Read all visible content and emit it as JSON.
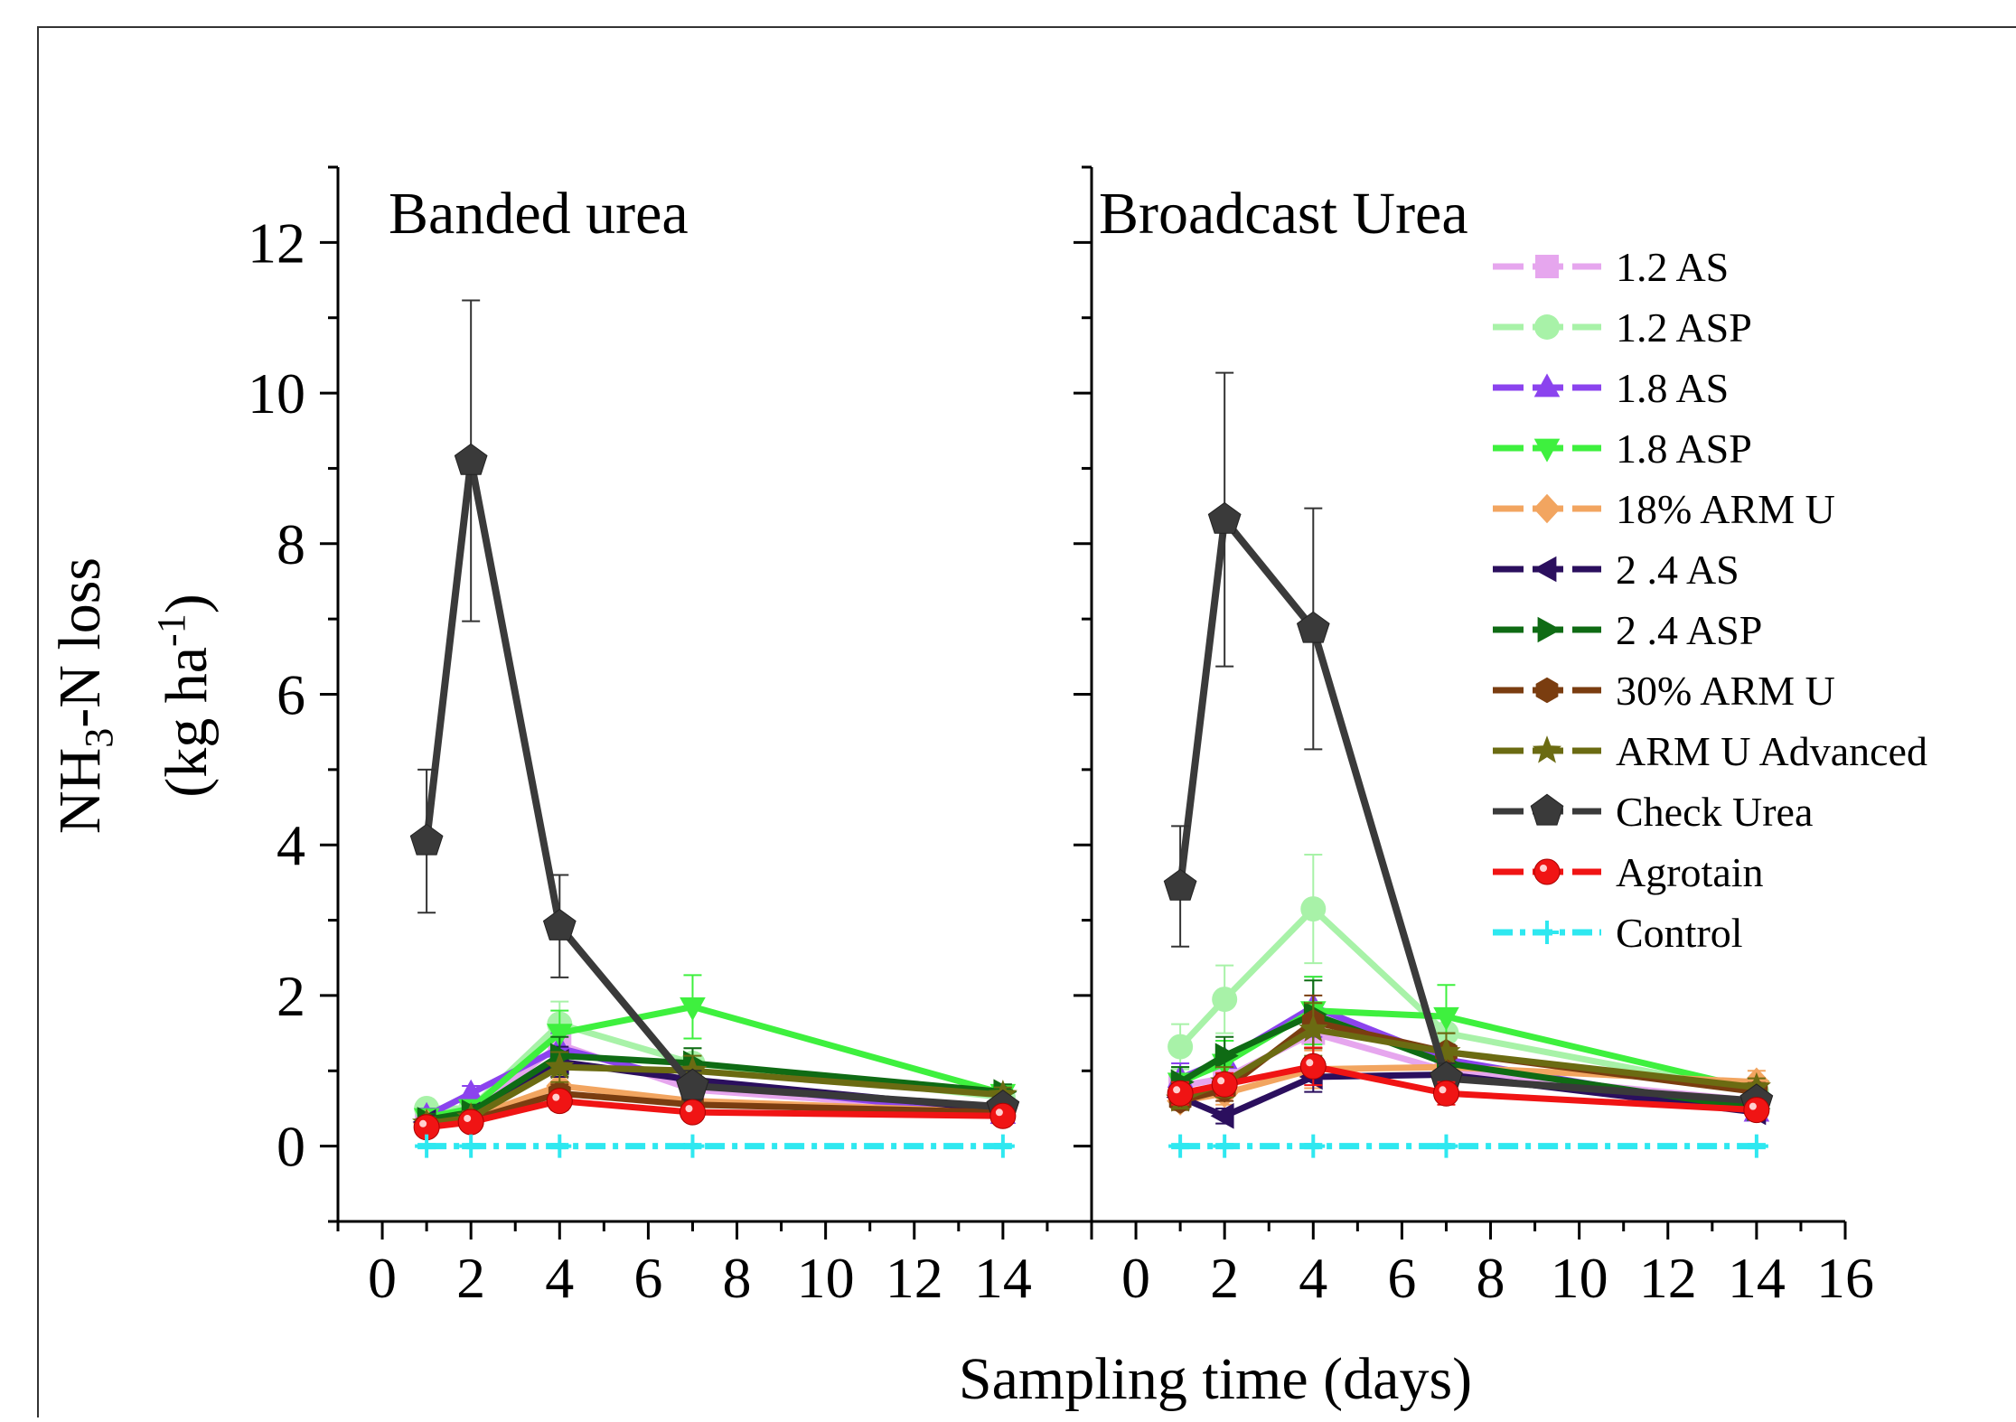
{
  "chart_data": {
    "type": "line",
    "xlabel": "Sampling time (days)",
    "ylabel_line1": "NH",
    "ylabel_sub": "3",
    "ylabel_line1_rest": "-N loss",
    "ylabel_line2": "(kg ha",
    "ylabel_sup": "-1",
    "ylabel_line2_rest": ")",
    "ylim": [
      -1,
      13
    ],
    "yticks": [
      0,
      2,
      4,
      6,
      8,
      10,
      12
    ],
    "grid": false,
    "legend_position": "right inside",
    "panels": [
      {
        "title": "Banded urea",
        "xlim": [
          -1,
          16
        ],
        "xticks": [
          0,
          2,
          4,
          6,
          8,
          10,
          12,
          14
        ],
        "x": [
          1,
          2,
          4,
          7,
          14
        ],
        "series": [
          {
            "name": "1.2 AS",
            "color": "#e6a6ee",
            "marker": "square",
            "values": [
              0.35,
              0.45,
              1.35,
              0.75,
              0.45
            ],
            "err": [
              0.08,
              0.1,
              0.25,
              0.15,
              0.08
            ]
          },
          {
            "name": "1.2 ASP",
            "color": "#a8f2a8",
            "marker": "circle",
            "values": [
              0.5,
              0.5,
              1.62,
              1.1,
              0.65
            ],
            "err": [
              0.1,
              0.1,
              0.3,
              0.2,
              0.1
            ]
          },
          {
            "name": "1.8 AS",
            "color": "#8b43ee",
            "marker": "triangle-up",
            "values": [
              0.4,
              0.7,
              1.3,
              0.85,
              0.42
            ],
            "err": [
              0.1,
              0.1,
              0.2,
              0.15,
              0.08
            ]
          },
          {
            "name": "1.8 ASP",
            "color": "#3ef03e",
            "marker": "triangle-down",
            "values": [
              0.38,
              0.5,
              1.5,
              1.85,
              0.7
            ],
            "err": [
              0.08,
              0.1,
              0.3,
              0.42,
              0.1
            ]
          },
          {
            "name": "18% ARM U",
            "color": "#f2a560",
            "marker": "diamond",
            "values": [
              0.3,
              0.38,
              0.8,
              0.6,
              0.45
            ],
            "err": [
              0.08,
              0.08,
              0.15,
              0.1,
              0.08
            ]
          },
          {
            "name": "2 .4 AS",
            "color": "#2b0f5e",
            "marker": "triangle-left",
            "values": [
              0.32,
              0.42,
              1.12,
              0.88,
              0.48
            ],
            "err": [
              0.08,
              0.08,
              0.2,
              0.15,
              0.08
            ]
          },
          {
            "name": "2 .4 ASP",
            "color": "#0f6b14",
            "marker": "triangle-right",
            "values": [
              0.35,
              0.45,
              1.2,
              1.1,
              0.72
            ],
            "err": [
              0.08,
              0.1,
              0.25,
              0.2,
              0.1
            ]
          },
          {
            "name": "30% ARM U",
            "color": "#7a3d10",
            "marker": "hexagon",
            "values": [
              0.28,
              0.35,
              0.7,
              0.55,
              0.45
            ],
            "err": [
              0.06,
              0.08,
              0.12,
              0.1,
              0.08
            ]
          },
          {
            "name": "ARM U Advanced",
            "color": "#6b6b12",
            "marker": "star",
            "values": [
              0.3,
              0.38,
              1.05,
              1.0,
              0.68
            ],
            "err": [
              0.08,
              0.08,
              0.2,
              0.2,
              0.1
            ]
          },
          {
            "name": "Check Urea",
            "color": "#3a3a3a",
            "marker": "pentagon",
            "values": [
              4.05,
              9.1,
              2.92,
              0.8,
              0.52
            ],
            "err": [
              0.95,
              2.13,
              0.68,
              0.2,
              0.1
            ]
          },
          {
            "name": "Agrotain",
            "color": "#f01414",
            "marker": "ball",
            "values": [
              0.25,
              0.32,
              0.6,
              0.45,
              0.4
            ],
            "err": [
              0.06,
              0.06,
              0.12,
              0.1,
              0.08
            ]
          },
          {
            "name": "Control",
            "color": "#2ee8f0",
            "marker": "plus",
            "values": [
              0.0,
              0.0,
              0.0,
              0.0,
              0.0
            ],
            "err": [
              0.03,
              0.03,
              0.03,
              0.03,
              0.03
            ]
          }
        ]
      },
      {
        "title": "Broadcast Urea",
        "xlim": [
          -1,
          16
        ],
        "xticks": [
          0,
          2,
          4,
          6,
          8,
          10,
          12,
          14,
          16
        ],
        "x": [
          1,
          2,
          4,
          7,
          14
        ],
        "series": [
          {
            "name": "1.2 AS",
            "color": "#e6a6ee",
            "marker": "square",
            "values": [
              0.8,
              0.9,
              1.5,
              1.0,
              0.6
            ],
            "err": [
              0.15,
              0.2,
              0.4,
              0.2,
              0.1
            ]
          },
          {
            "name": "1.2 ASP",
            "color": "#a8f2a8",
            "marker": "circle",
            "values": [
              1.32,
              1.95,
              3.15,
              1.5,
              0.72
            ],
            "err": [
              0.3,
              0.45,
              0.72,
              0.3,
              0.12
            ]
          },
          {
            "name": "1.8 AS",
            "color": "#8b43ee",
            "marker": "triangle-up",
            "values": [
              0.9,
              1.15,
              1.85,
              1.15,
              0.45
            ],
            "err": [
              0.2,
              0.25,
              0.4,
              0.2,
              0.08
            ]
          },
          {
            "name": "1.8 ASP",
            "color": "#3ef03e",
            "marker": "triangle-down",
            "values": [
              0.85,
              1.1,
              1.8,
              1.72,
              0.75
            ],
            "err": [
              0.2,
              0.3,
              0.45,
              0.42,
              0.12
            ]
          },
          {
            "name": "18% ARM U",
            "color": "#f2a560",
            "marker": "diamond",
            "values": [
              0.6,
              0.7,
              1.02,
              1.05,
              0.85
            ],
            "err": [
              0.12,
              0.15,
              0.25,
              0.2,
              0.15
            ]
          },
          {
            "name": "2 .4 AS",
            "color": "#2b0f5e",
            "marker": "triangle-left",
            "values": [
              0.65,
              0.4,
              0.92,
              0.95,
              0.45
            ],
            "err": [
              0.12,
              0.1,
              0.2,
              0.2,
              0.08
            ]
          },
          {
            "name": "2 .4 ASP",
            "color": "#0f6b14",
            "marker": "triangle-right",
            "values": [
              0.85,
              1.2,
              1.75,
              1.1,
              0.5
            ],
            "err": [
              0.2,
              0.25,
              0.45,
              0.25,
              0.1
            ]
          },
          {
            "name": "30% ARM U",
            "color": "#7a3d10",
            "marker": "hexagon",
            "values": [
              0.6,
              0.75,
              1.65,
              1.25,
              0.72
            ],
            "err": [
              0.12,
              0.15,
              0.35,
              0.25,
              0.12
            ]
          },
          {
            "name": "ARM U Advanced",
            "color": "#6b6b12",
            "marker": "star",
            "values": [
              0.62,
              0.85,
              1.55,
              1.25,
              0.78
            ],
            "err": [
              0.12,
              0.2,
              0.35,
              0.25,
              0.12
            ]
          },
          {
            "name": "Check Urea",
            "color": "#3a3a3a",
            "marker": "pentagon",
            "values": [
              3.45,
              8.32,
              6.87,
              0.9,
              0.6
            ],
            "err": [
              0.8,
              1.95,
              1.6,
              0.2,
              0.1
            ]
          },
          {
            "name": "Agrotain",
            "color": "#f01414",
            "marker": "ball",
            "values": [
              0.7,
              0.82,
              1.06,
              0.7,
              0.48
            ],
            "err": [
              0.15,
              0.15,
              0.25,
              0.15,
              0.08
            ]
          },
          {
            "name": "Control",
            "color": "#2ee8f0",
            "marker": "plus",
            "values": [
              0.0,
              0.0,
              0.0,
              0.0,
              0.0
            ],
            "err": [
              0.03,
              0.03,
              0.03,
              0.03,
              0.03
            ]
          }
        ]
      }
    ]
  }
}
